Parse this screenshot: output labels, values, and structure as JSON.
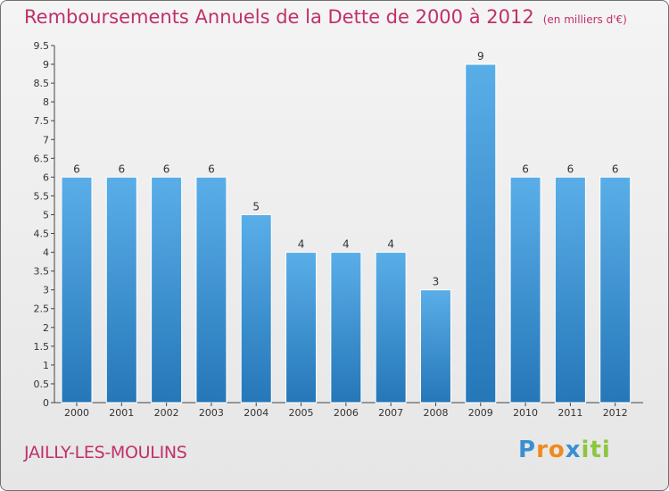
{
  "chart_data": {
    "type": "bar",
    "title": "Remboursements Annuels de la Dette de 2000 à 2012",
    "subtitle": "(en milliers d'€)",
    "categories": [
      "2000",
      "2001",
      "2002",
      "2003",
      "2004",
      "2005",
      "2006",
      "2007",
      "2008",
      "2009",
      "2010",
      "2011",
      "2012"
    ],
    "values": [
      6,
      6,
      6,
      6,
      5,
      4,
      4,
      4,
      3,
      9,
      6,
      6,
      6
    ],
    "data_labels": [
      "6",
      "6",
      "6",
      "6",
      "5",
      "4",
      "4",
      "4",
      "3",
      "9",
      "6",
      "6",
      "6"
    ],
    "yticks": [
      "0",
      "0.5",
      "1",
      "1.5",
      "2",
      "2.5",
      "3",
      "3.5",
      "4",
      "4.5",
      "5",
      "5.5",
      "6",
      "6.5",
      "7",
      "7.5",
      "8",
      "8.5",
      "9",
      "9.5"
    ],
    "ylim": [
      0,
      9.5
    ],
    "xlabel": "",
    "ylabel": "",
    "grid": false
  },
  "city": "JAILLY-LES-MOULINS",
  "logo": {
    "letters": [
      "P",
      "r",
      "o",
      "x",
      "i",
      "t",
      "i"
    ],
    "colors": [
      "#3a8fd0",
      "#f08a1c",
      "#f08a1c",
      "#3a8fd0",
      "#8cc63f",
      "#8cc63f",
      "#8cc63f"
    ]
  },
  "colors": {
    "bar_top": "#5aaee8",
    "bar_bottom": "#2577b8",
    "text_accent": "#c0306a"
  }
}
